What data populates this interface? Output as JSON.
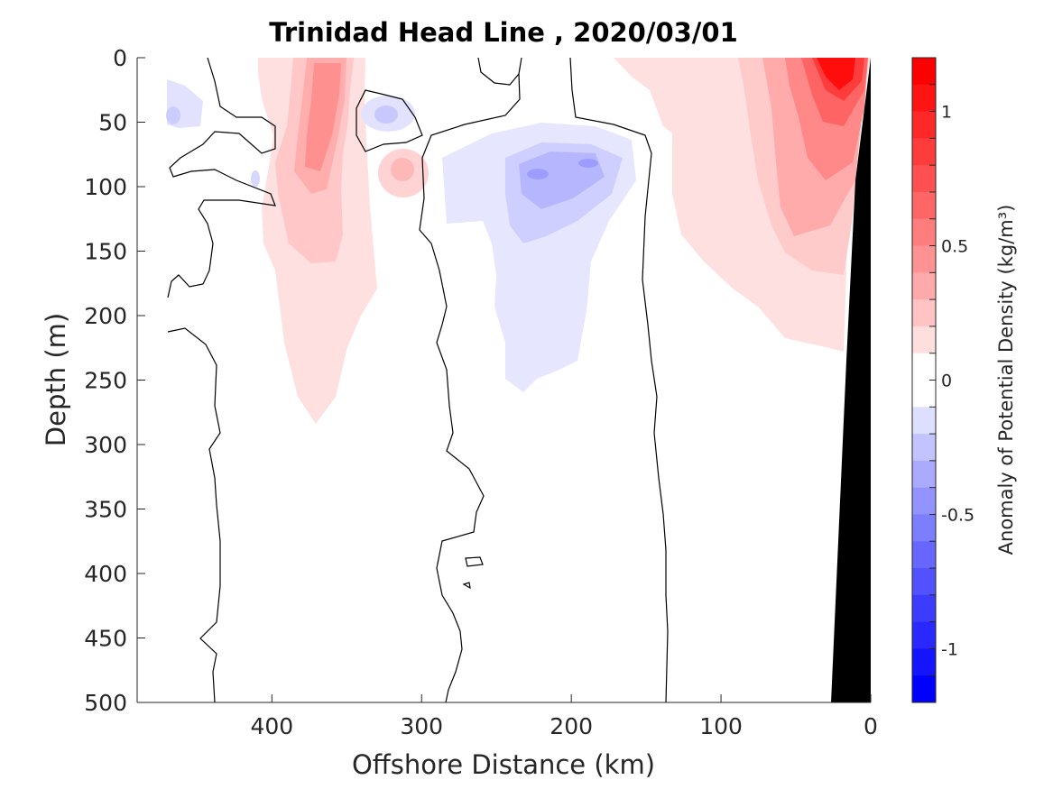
{
  "chart_data": {
    "type": "heatmap",
    "title": "Trinidad Head Line , 2020/03/01",
    "xlabel": "Offshore Distance (km)",
    "ylabel": "Depth (m)",
    "xlim": [
      490,
      0
    ],
    "ylim": [
      0,
      500
    ],
    "x_reversed": true,
    "y_reversed": true,
    "xticks": [
      400,
      300,
      200,
      100,
      0
    ],
    "yticks": [
      0,
      50,
      100,
      150,
      200,
      250,
      300,
      350,
      400,
      450,
      500
    ],
    "colorbar": {
      "label": "Anomaly of Potential Density (kg/m³)",
      "range": [
        -1.2,
        1.2
      ],
      "step": 0.1,
      "ticks": [
        1,
        0.5,
        0,
        -0.5,
        -1
      ],
      "colors": {
        "negative": "#0000ff",
        "zero": "#ffffff",
        "positive": "#ff0000"
      }
    },
    "seafloor_color": "#000000",
    "anomaly_features": [
      {
        "distance_km": 365,
        "depth_m": 85,
        "value": 0.5
      },
      {
        "distance_km": 365,
        "depth_m": 20,
        "value": 0.4
      },
      {
        "distance_km": 330,
        "depth_m": 45,
        "value": -0.3
      },
      {
        "distance_km": 305,
        "depth_m": 90,
        "value": 0.3
      },
      {
        "distance_km": 470,
        "depth_m": 45,
        "value": -0.2
      },
      {
        "distance_km": 210,
        "depth_m": 90,
        "value": -0.5
      },
      {
        "distance_km": 20,
        "depth_m": 10,
        "value": 1.2
      },
      {
        "distance_km": 75,
        "depth_m": 130,
        "value": 0.3
      }
    ]
  }
}
